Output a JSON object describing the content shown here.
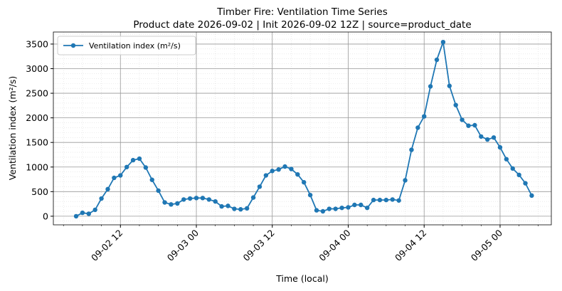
{
  "chart_data": {
    "type": "line",
    "title": "Timber Fire: Ventilation Time Series",
    "subtitle": "Product date 2026-09-02 | Init 2026-09-02 12Z | source=product_date",
    "xlabel": "Time (local)",
    "ylabel": "Ventilation index (m²/s)",
    "x": [
      "09-02 05",
      "09-02 06",
      "09-02 07",
      "09-02 08",
      "09-02 09",
      "09-02 10",
      "09-02 11",
      "09-02 12",
      "09-02 13",
      "09-02 14",
      "09-02 15",
      "09-02 16",
      "09-02 17",
      "09-02 18",
      "09-02 19",
      "09-02 20",
      "09-02 21",
      "09-02 22",
      "09-02 23",
      "09-03 00",
      "09-03 01",
      "09-03 02",
      "09-03 03",
      "09-03 04",
      "09-03 05",
      "09-03 06",
      "09-03 07",
      "09-03 08",
      "09-03 09",
      "09-03 10",
      "09-03 11",
      "09-03 12",
      "09-03 13",
      "09-03 14",
      "09-03 15",
      "09-03 16",
      "09-03 17",
      "09-03 18",
      "09-03 19",
      "09-03 20",
      "09-03 21",
      "09-03 22",
      "09-03 23",
      "09-04 00",
      "09-04 01",
      "09-04 02",
      "09-04 03",
      "09-04 04",
      "09-04 05",
      "09-04 06",
      "09-04 07",
      "09-04 08",
      "09-04 09",
      "09-04 10",
      "09-04 11",
      "09-04 12",
      "09-04 13",
      "09-04 14",
      "09-04 15",
      "09-04 16",
      "09-04 17",
      "09-04 18",
      "09-04 19",
      "09-04 20",
      "09-04 21",
      "09-04 22",
      "09-04 23",
      "09-05 00",
      "09-05 01",
      "09-05 02",
      "09-05 03",
      "09-05 04",
      "09-05 05"
    ],
    "series": [
      {
        "name": "Ventilation index (m²/s)",
        "color": "#1f77b4",
        "values": [
          0,
          70,
          50,
          130,
          360,
          550,
          780,
          830,
          1000,
          1140,
          1170,
          990,
          740,
          520,
          280,
          240,
          260,
          340,
          360,
          370,
          370,
          340,
          300,
          200,
          210,
          150,
          140,
          160,
          380,
          600,
          830,
          920,
          950,
          1010,
          960,
          850,
          690,
          430,
          120,
          100,
          150,
          150,
          170,
          180,
          230,
          230,
          170,
          330,
          330,
          330,
          340,
          320,
          730,
          1350,
          1800,
          2030,
          2640,
          3180,
          3540,
          2650,
          2260,
          1960,
          1840,
          1850,
          1620,
          1560,
          1600,
          1400,
          1160,
          970,
          840,
          670,
          420
        ]
      }
    ],
    "xlim": [
      "09-02 01:24",
      "09-05 08:06"
    ],
    "xticks": [
      "09-02 12",
      "09-03 00",
      "09-03 12",
      "09-04 00",
      "09-04 12",
      "09-05 00"
    ],
    "ylim": [
      -175,
      3745
    ],
    "yticks": [
      0,
      500,
      1000,
      1500,
      2000,
      2500,
      3000,
      3500
    ],
    "grid": true,
    "legend": "upper left"
  }
}
